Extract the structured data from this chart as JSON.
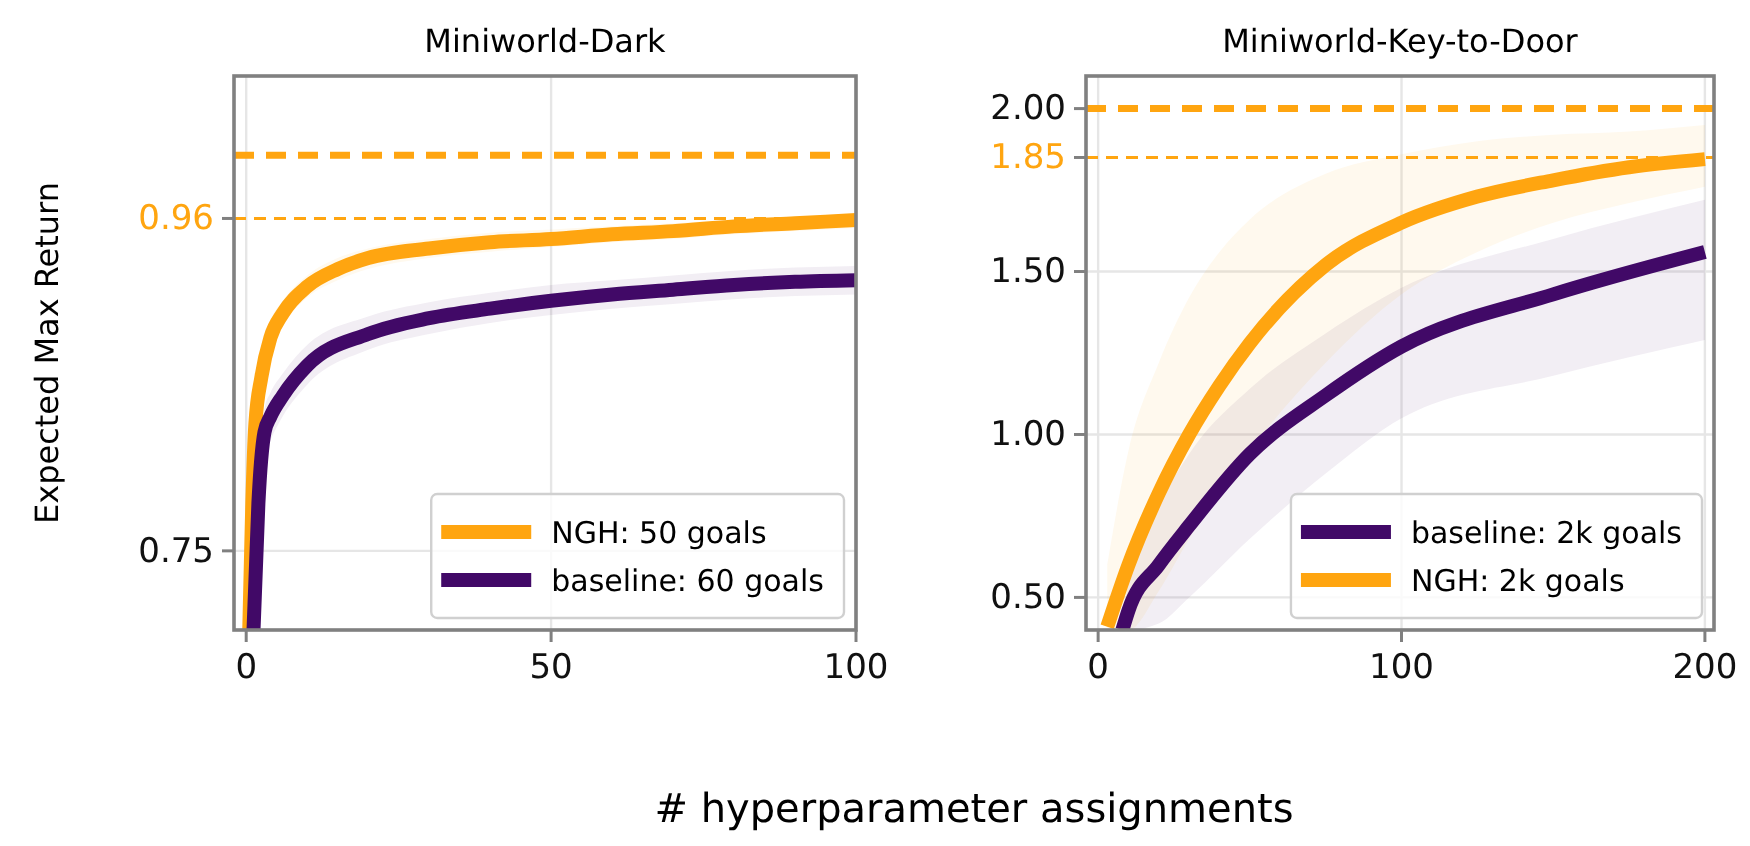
{
  "chart_data": [
    {
      "type": "line",
      "title": "Miniworld-Dark",
      "ylabel": "Expected Max Return",
      "xlabel": "# hyperparameter assignments",
      "xlim": [
        -2,
        100
      ],
      "xticks": [
        0,
        50,
        100
      ],
      "ylim": [
        0.7,
        1.05
      ],
      "yticks": [
        {
          "value": 0.75,
          "label": "0.75"
        },
        {
          "value": 0.96,
          "label": "0.96"
        }
      ],
      "grid": true,
      "legend": "bottom right",
      "line_style": "solid",
      "marker": "none",
      "ref_lines": [
        {
          "axis": "y",
          "value": 1.0,
          "color": "#ffa510",
          "line_style": "dashed",
          "label": null
        },
        {
          "axis": "y",
          "value": 0.96,
          "color": "#ffa510",
          "line_style": "dotted",
          "label": null
        }
      ],
      "series": [
        {
          "name": "NGH: 50 goals",
          "color": "#ffa510",
          "x": [
            0.5,
            1,
            1.5,
            2.5,
            4,
            6,
            10,
            15,
            20,
            30,
            40,
            50,
            60,
            70,
            80,
            90,
            100
          ],
          "values": [
            0.7,
            0.78,
            0.83,
            0.86,
            0.885,
            0.9,
            0.917,
            0.928,
            0.935,
            0.941,
            0.945,
            0.947,
            0.95,
            0.952,
            0.955,
            0.957,
            0.959
          ],
          "lower": [
            0.7,
            0.77,
            0.82,
            0.85,
            0.875,
            0.892,
            0.91,
            0.921,
            0.928,
            0.935,
            0.939,
            0.942,
            0.945,
            0.947,
            0.95,
            0.952,
            0.954
          ],
          "upper": [
            0.71,
            0.79,
            0.84,
            0.87,
            0.895,
            0.908,
            0.924,
            0.935,
            0.941,
            0.947,
            0.951,
            0.953,
            0.955,
            0.957,
            0.959,
            0.961,
            0.963
          ]
        },
        {
          "name": "baseline: 60 goals",
          "color": "#410967",
          "x": [
            1.2,
            2,
            3,
            4,
            6,
            10,
            20,
            30,
            40,
            50,
            60,
            70,
            80,
            90,
            100
          ],
          "values": [
            0.7,
            0.78,
            0.825,
            0.835,
            0.848,
            0.867,
            0.887,
            0.897,
            0.903,
            0.908,
            0.912,
            0.915,
            0.918,
            0.92,
            0.921
          ],
          "lower": [
            0.7,
            0.77,
            0.81,
            0.82,
            0.835,
            0.855,
            0.877,
            0.887,
            0.894,
            0.899,
            0.903,
            0.906,
            0.909,
            0.911,
            0.912
          ],
          "upper": [
            0.71,
            0.79,
            0.84,
            0.85,
            0.862,
            0.88,
            0.898,
            0.907,
            0.913,
            0.918,
            0.921,
            0.924,
            0.927,
            0.929,
            0.93
          ]
        }
      ]
    },
    {
      "type": "line",
      "title": "Miniworld-Key-to-Door",
      "xlim": [
        -4,
        203
      ],
      "xticks": [
        0,
        100,
        200
      ],
      "ylim": [
        0.4,
        2.1
      ],
      "yticks": [
        {
          "value": 0.5,
          "label": "0.50"
        },
        {
          "value": 1.0,
          "label": "1.00"
        },
        {
          "value": 1.5,
          "label": "1.50"
        },
        {
          "value": 1.85,
          "label": "1.85"
        },
        {
          "value": 2.0,
          "label": "2.00"
        }
      ],
      "grid": true,
      "legend": "bottom right",
      "line_style": "solid",
      "marker": "none",
      "ref_lines": [
        {
          "axis": "y",
          "value": 2.0,
          "color": "#ffa510",
          "line_style": "dashed",
          "label": null
        },
        {
          "axis": "y",
          "value": 1.85,
          "color": "#ffa510",
          "line_style": "dotted",
          "label": null
        }
      ],
      "series": [
        {
          "name": "baseline: 2k goals",
          "color": "#410967",
          "x": [
            8,
            10,
            20,
            30,
            50,
            75,
            100,
            150,
            200
          ],
          "values": [
            0.4,
            0.46,
            0.6,
            0.72,
            0.94,
            1.12,
            1.27,
            1.43,
            1.56
          ],
          "lower": [
            0.4,
            0.4,
            0.42,
            0.5,
            0.68,
            0.88,
            1.05,
            1.18,
            1.29
          ],
          "upper": [
            0.4,
            0.55,
            0.78,
            0.94,
            1.14,
            1.31,
            1.45,
            1.6,
            1.72
          ]
        },
        {
          "name": "NGH: 2k goals",
          "color": "#ffa510",
          "x": [
            3,
            10,
            20,
            30,
            40,
            50,
            75,
            100,
            125,
            150,
            175,
            200
          ],
          "values": [
            0.41,
            0.6,
            0.82,
            1.0,
            1.15,
            1.28,
            1.52,
            1.65,
            1.73,
            1.78,
            1.82,
            1.845
          ],
          "lower": [
            0.4,
            0.4,
            0.52,
            0.68,
            0.82,
            0.95,
            1.22,
            1.43,
            1.56,
            1.65,
            1.71,
            1.76
          ],
          "upper": [
            0.6,
            0.95,
            1.22,
            1.42,
            1.56,
            1.66,
            1.8,
            1.86,
            1.9,
            1.92,
            1.93,
            1.95
          ]
        }
      ]
    }
  ]
}
